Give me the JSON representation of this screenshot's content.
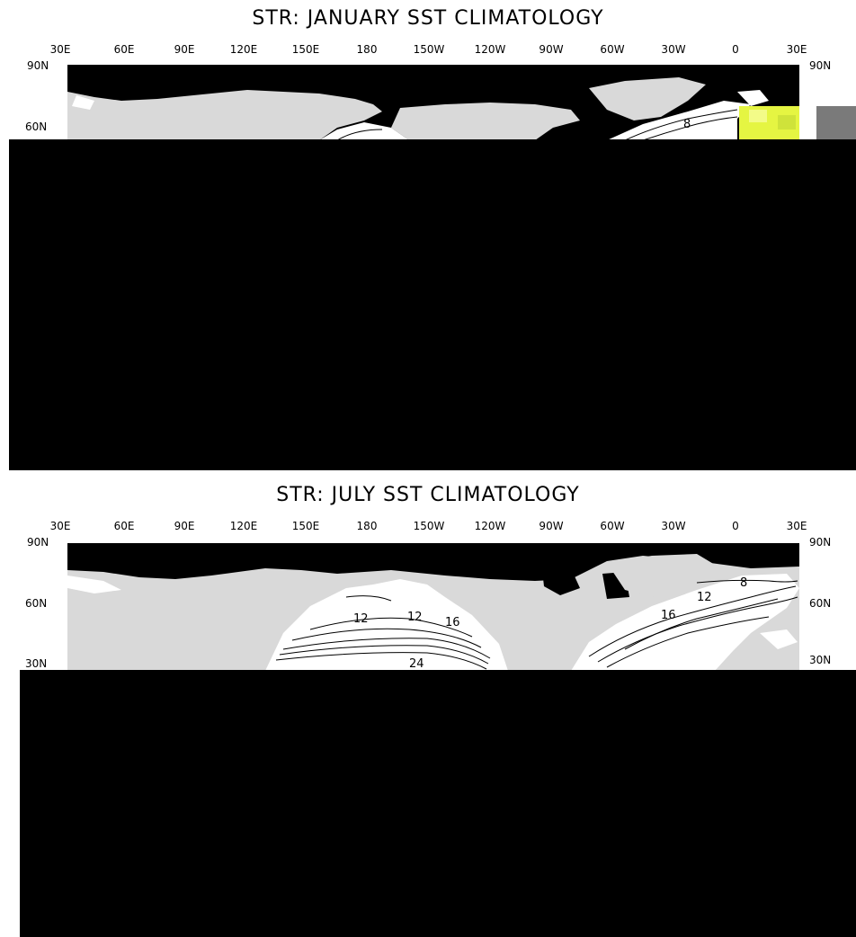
{
  "panels": [
    {
      "title": "STR: JANUARY SST CLIMATOLOGY",
      "lon_labels": [
        "30E",
        "60E",
        "90E",
        "120E",
        "150E",
        "180",
        "150W",
        "120W",
        "90W",
        "60W",
        "30W",
        "0",
        "30E"
      ],
      "lat_left": [
        "90N",
        "60N"
      ],
      "lat_right": [
        "90N"
      ],
      "contour_labels": [
        "8"
      ],
      "colors": {
        "land": "#d9d9d9",
        "ice": "#000000",
        "ocean": "#ffffff",
        "highlight": "#e5f542"
      }
    },
    {
      "title": "STR: JULY SST CLIMATOLOGY",
      "lon_labels": [
        "30E",
        "60E",
        "90E",
        "120E",
        "150E",
        "180",
        "150W",
        "120W",
        "90W",
        "60W",
        "30W",
        "0",
        "30E"
      ],
      "lat_left": [
        "90N",
        "60N",
        "30N"
      ],
      "lat_right": [
        "90N",
        "60N",
        "30N"
      ],
      "contour_labels": [
        "12",
        "12",
        "16",
        "24",
        "16",
        "12",
        "8"
      ],
      "colors": {
        "land": "#d9d9d9",
        "ice": "#000000",
        "ocean": "#ffffff"
      }
    }
  ]
}
